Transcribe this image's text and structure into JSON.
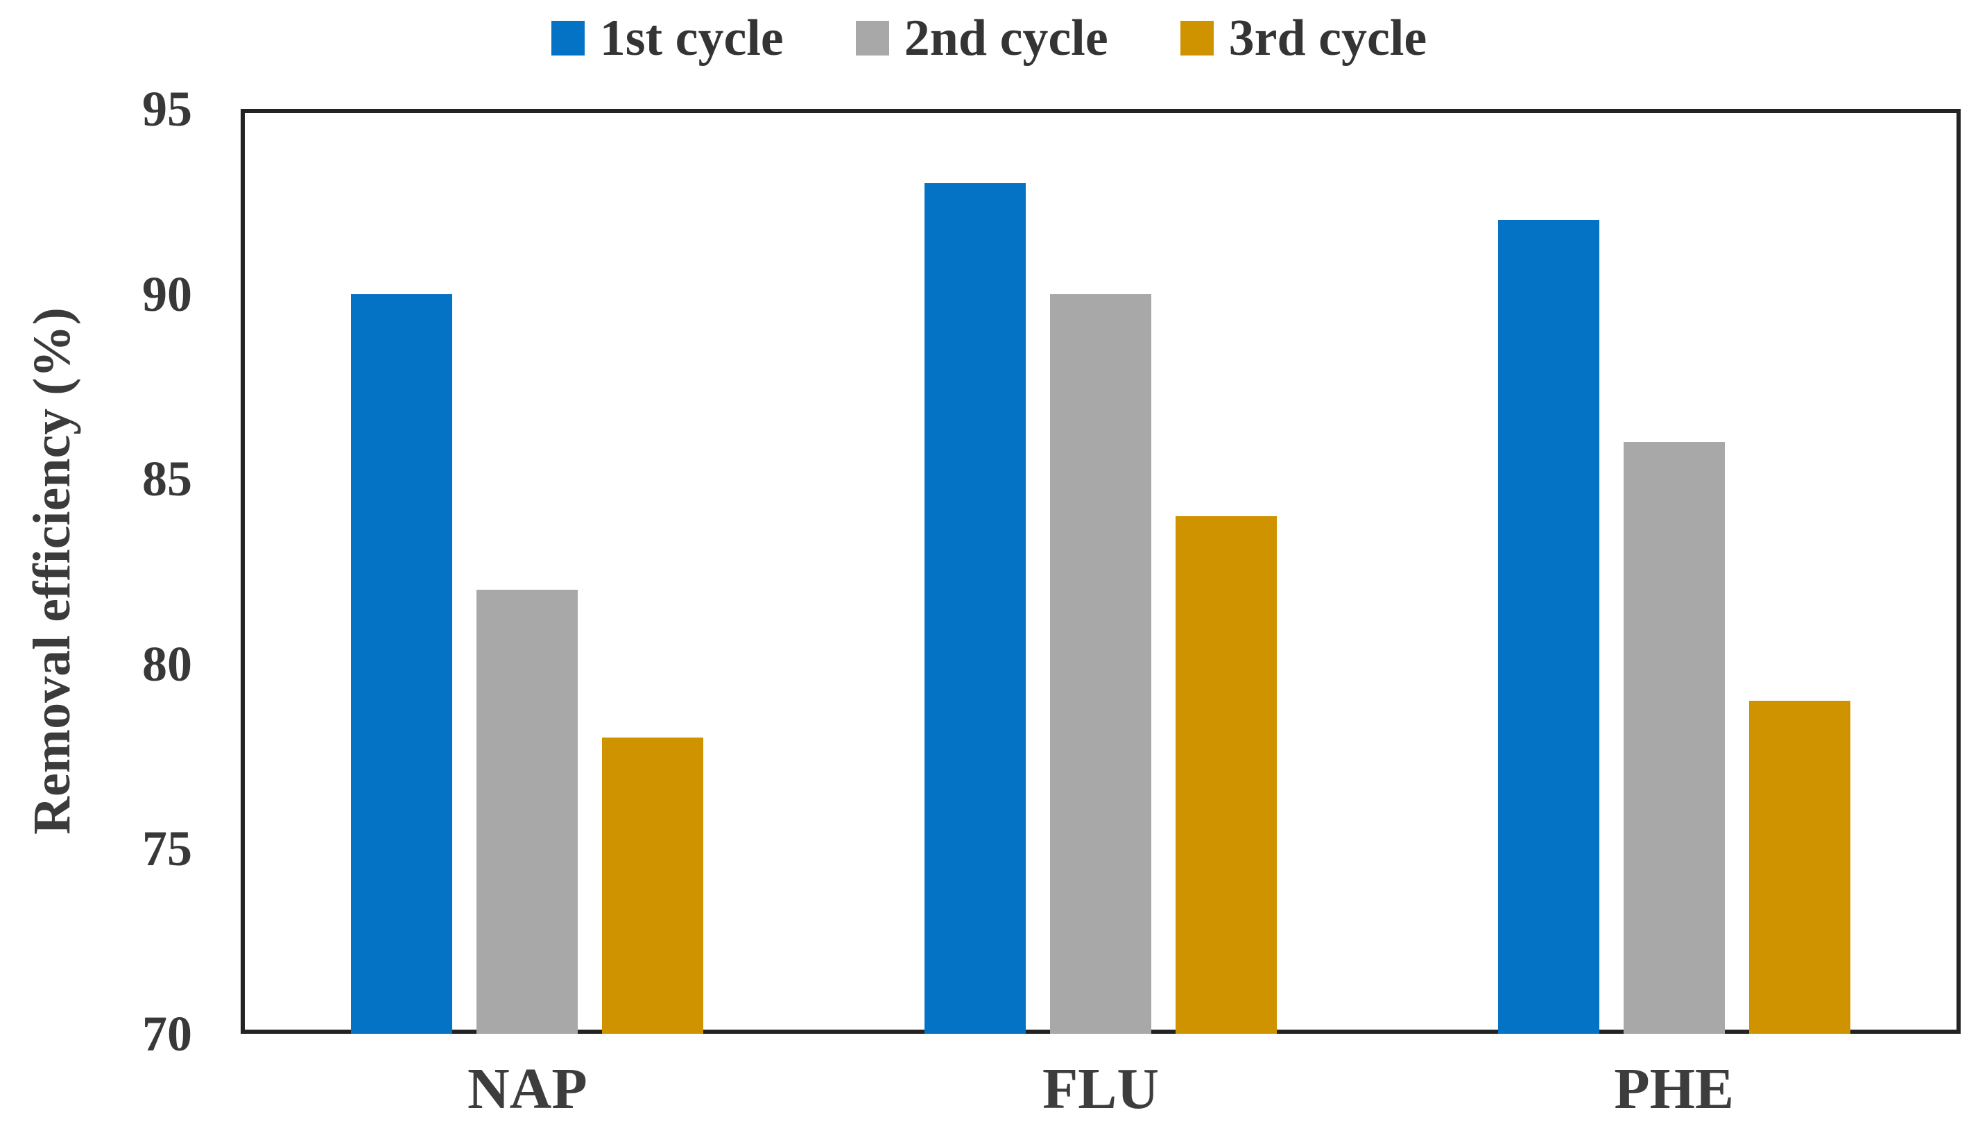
{
  "figure": {
    "background": "#ffffff",
    "frame_color": "#232323",
    "text_color": "#383838"
  },
  "chart_data": {
    "type": "bar",
    "categories": [
      "NAP",
      "FLU",
      "PHE"
    ],
    "series": [
      {
        "name": "1st cycle",
        "color": "#0473c5",
        "values": [
          90,
          93,
          92
        ]
      },
      {
        "name": "2nd cycle",
        "color": "#a8a8a8",
        "values": [
          82,
          90,
          86
        ]
      },
      {
        "name": "3rd cycle",
        "color": "#d09300",
        "values": [
          78,
          84,
          79
        ]
      }
    ],
    "title": "",
    "xlabel": "",
    "ylabel": "Removal efficiency (%)",
    "ylim": [
      70,
      95
    ],
    "yticks": [
      70,
      75,
      80,
      85,
      90,
      95
    ],
    "grid": false,
    "legend_position": "top"
  }
}
